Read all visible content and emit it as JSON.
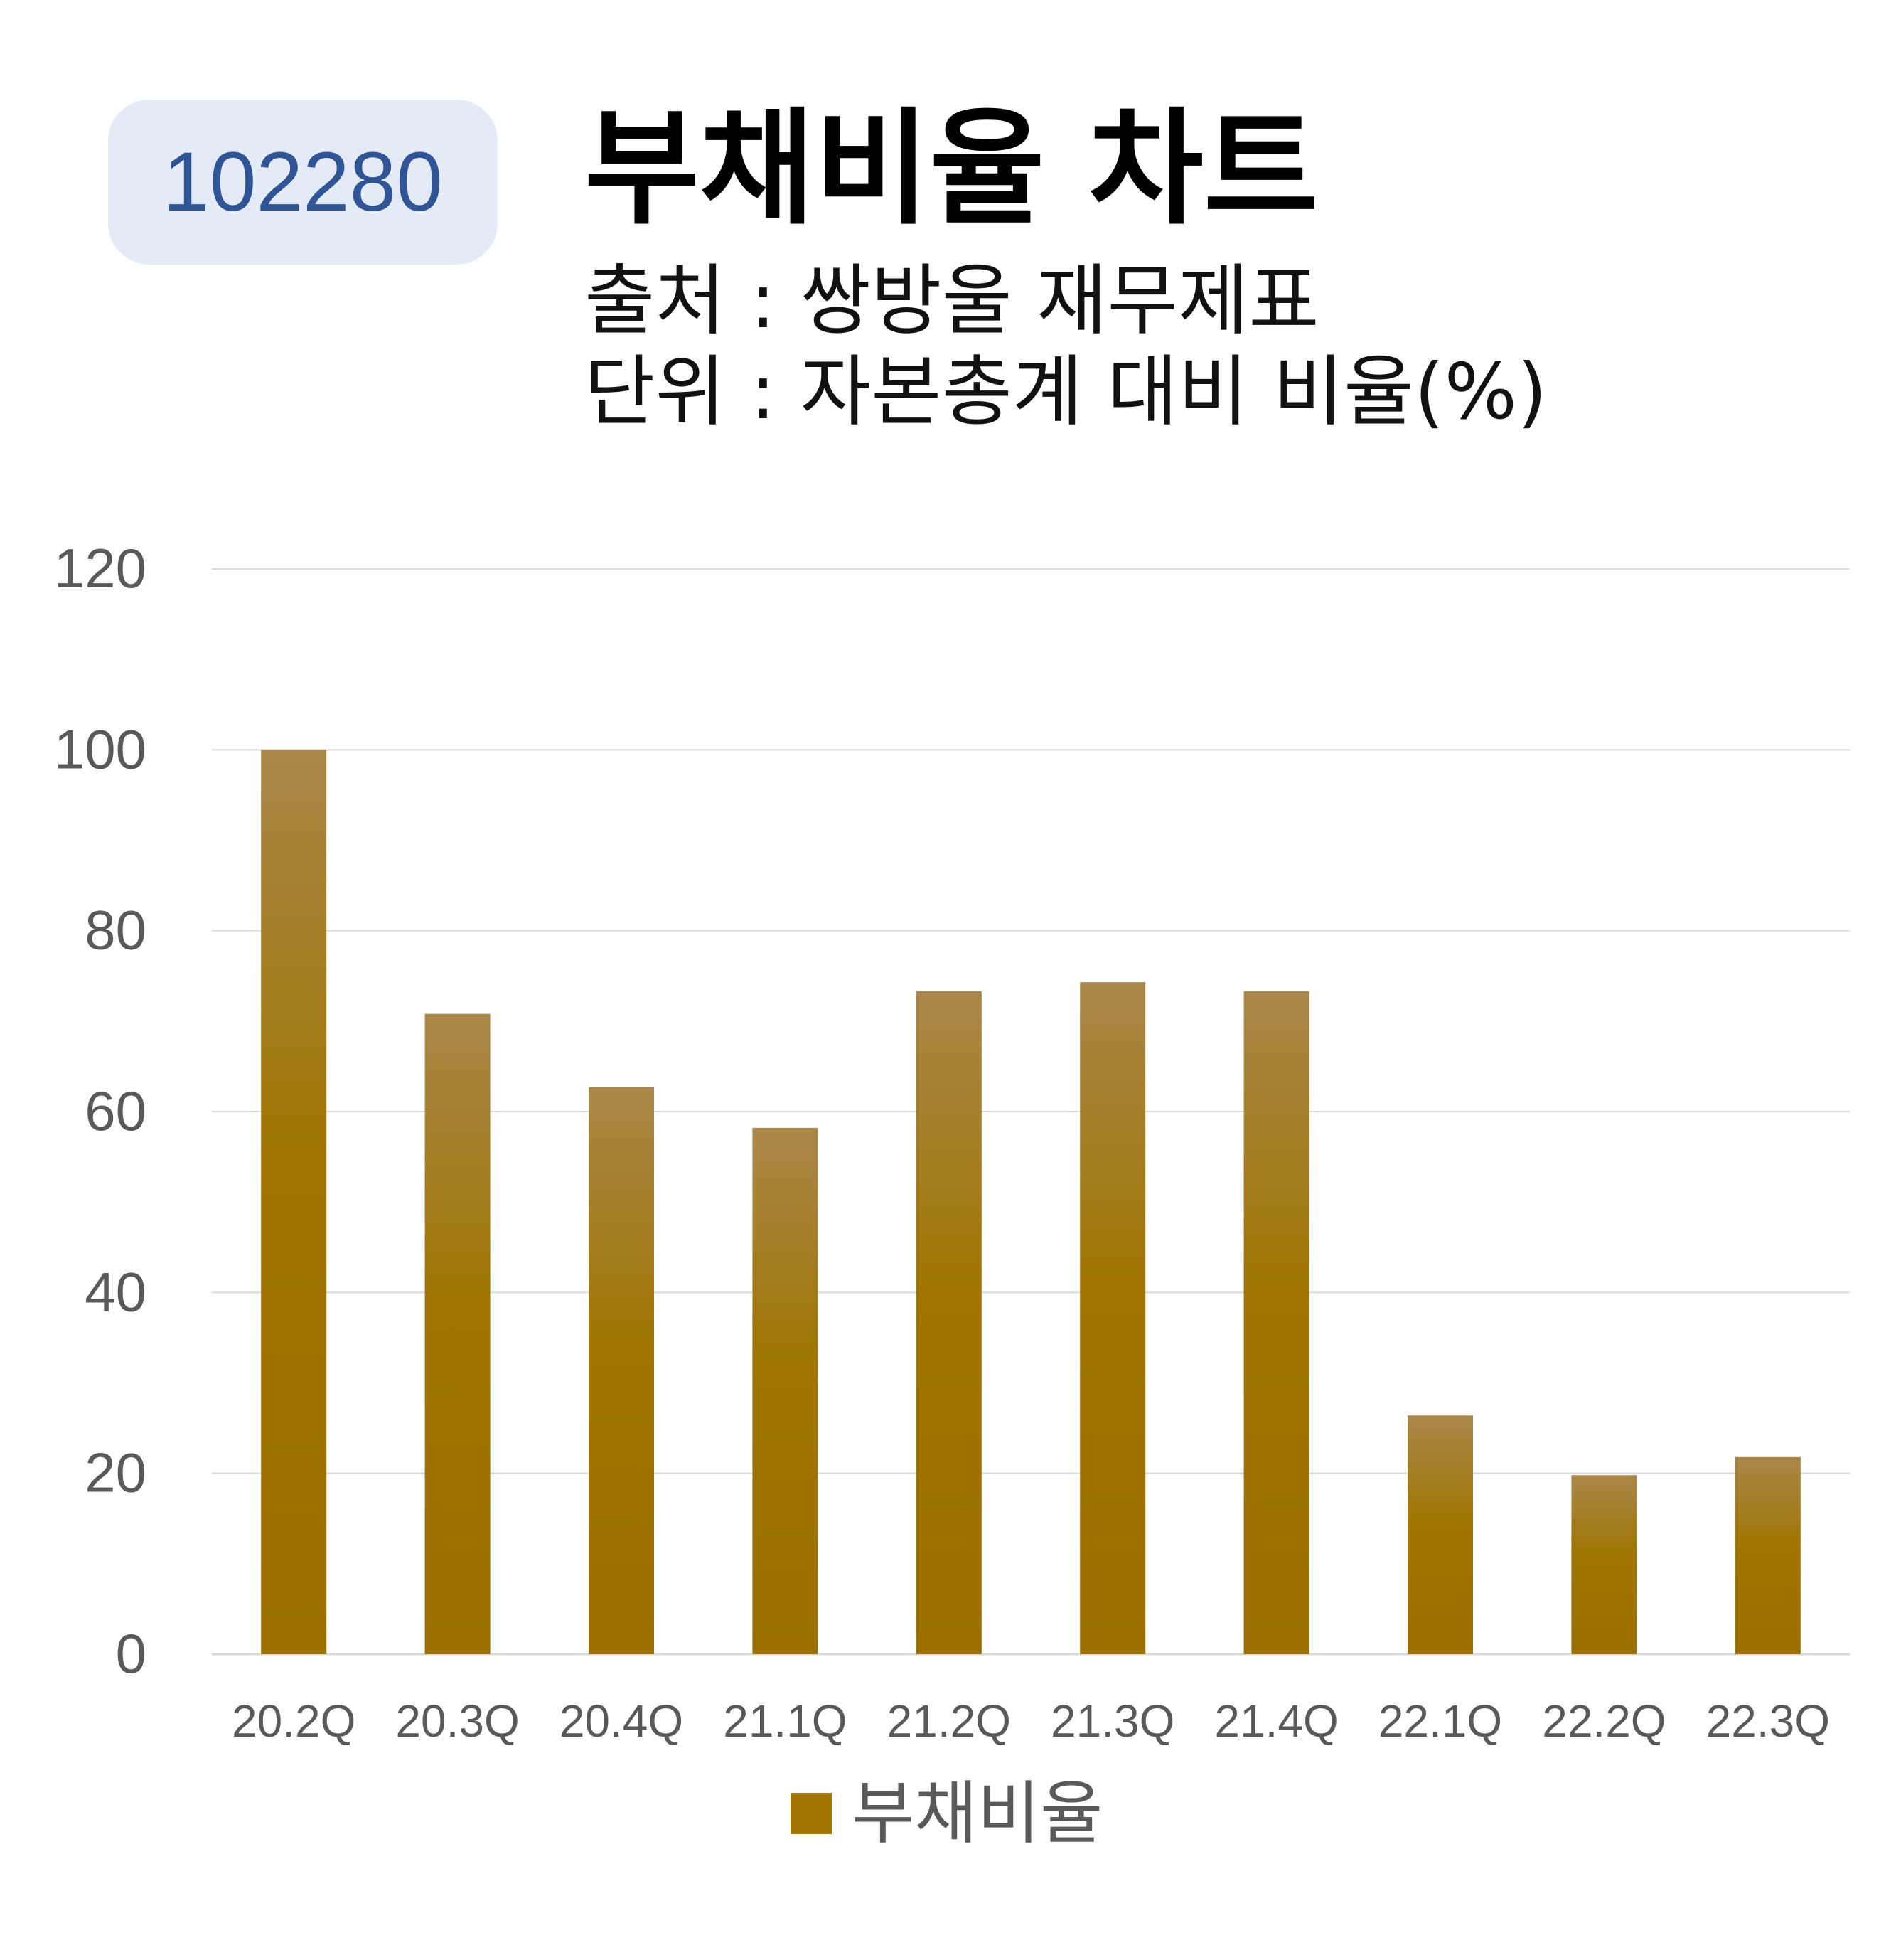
{
  "header": {
    "code": "102280",
    "title": "부채비율 차트",
    "source": "출처 : 쌍방울 재무제표",
    "unit": "단위 : 자본총계 대비 비율(%)"
  },
  "colors": {
    "bar": "#a07502",
    "bar_top": "#a98749",
    "badge_bg": "#e5ebf6",
    "badge_text": "#2f5597",
    "grid": "#d9d9d9",
    "axis_text": "#595959"
  },
  "chart_data": {
    "type": "bar",
    "title": "부채비율 차트",
    "categories": [
      "20.2Q",
      "20.3Q",
      "20.4Q",
      "21.1Q",
      "21.2Q",
      "21.3Q",
      "21.4Q",
      "22.1Q",
      "22.2Q",
      "22.3Q"
    ],
    "series": [
      {
        "name": "부채비율",
        "values": [
          100.0,
          70.8,
          62.7,
          58.2,
          73.3,
          74.3,
          73.3,
          26.4,
          19.8,
          21.8
        ]
      }
    ],
    "ylim": [
      0,
      120
    ],
    "yticks": [
      0,
      20,
      40,
      60,
      80,
      100,
      120
    ],
    "grid": true,
    "legend": "bottom"
  }
}
